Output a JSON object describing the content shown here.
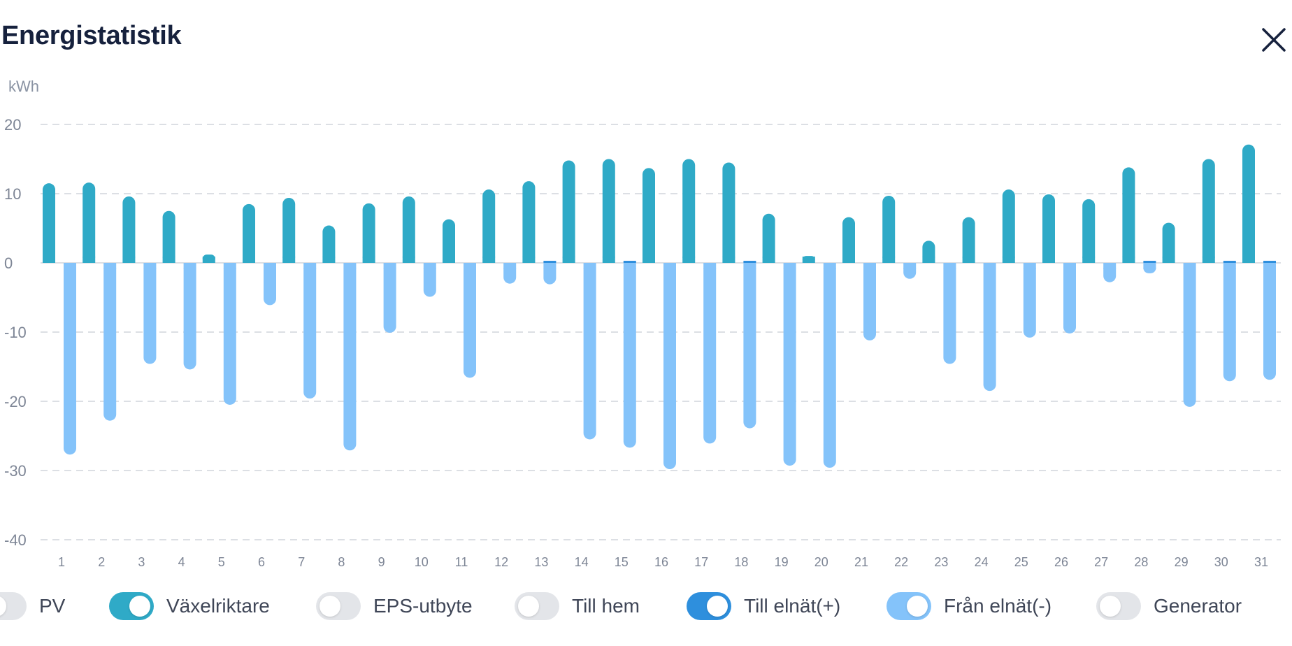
{
  "header": {
    "title": "Energistatistik"
  },
  "colors": {
    "inverter": "#2faac7",
    "to_grid": "#2e8fdd",
    "from_grid": "#84c3fa",
    "toggle_off": "#e3e5e9",
    "grid_line": "#dcdfe4"
  },
  "legend": [
    {
      "label": "PV",
      "on": false,
      "color": "#e3e5e9"
    },
    {
      "label": "Växelriktare",
      "on": true,
      "color": "#2faac7"
    },
    {
      "label": "EPS-utbyte",
      "on": false,
      "color": "#e3e5e9"
    },
    {
      "label": "Till hem",
      "on": false,
      "color": "#e3e5e9"
    },
    {
      "label": "Till elnät(+)",
      "on": true,
      "color": "#2e8fdd"
    },
    {
      "label": "Från elnät(-)",
      "on": true,
      "color": "#84c3fa"
    },
    {
      "label": "Generator",
      "on": false,
      "color": "#e3e5e9"
    }
  ],
  "chart_data": {
    "type": "bar",
    "ylabel": "kWh",
    "ylim": [
      -40,
      20
    ],
    "yticks": [
      20,
      10,
      0,
      -10,
      -20,
      -30,
      -40
    ],
    "grid": true,
    "categories": [
      "1",
      "2",
      "3",
      "4",
      "5",
      "6",
      "7",
      "8",
      "9",
      "10",
      "11",
      "12",
      "13",
      "14",
      "15",
      "16",
      "17",
      "18",
      "19",
      "20",
      "21",
      "22",
      "23",
      "24",
      "25",
      "26",
      "27",
      "28",
      "29",
      "30",
      "31"
    ],
    "series": [
      {
        "name": "Växelriktare",
        "color": "#2faac7",
        "values": [
          11.5,
          11.6,
          9.6,
          7.5,
          1.2,
          8.5,
          9.4,
          5.4,
          8.6,
          9.6,
          6.3,
          10.6,
          11.8,
          14.8,
          15.0,
          13.7,
          15.0,
          14.5,
          7.1,
          1.0,
          6.6,
          9.7,
          3.2,
          6.6,
          10.6,
          9.9,
          9.2,
          13.8,
          5.8,
          15.0,
          17.1
        ]
      },
      {
        "name": "Till elnät(+)",
        "color": "#2e8fdd",
        "values": [
          0,
          0,
          0,
          0,
          0,
          0,
          0,
          0,
          0,
          0,
          0,
          0,
          0.2,
          0,
          0.2,
          0,
          0,
          0.2,
          0,
          0,
          0,
          0,
          0,
          0,
          0,
          0,
          0,
          0.2,
          0,
          0.2,
          0.2
        ]
      },
      {
        "name": "Från elnät(-)",
        "color": "#84c3fa",
        "values": [
          -27.7,
          -22.8,
          -14.6,
          -15.4,
          -20.5,
          -6.1,
          -19.6,
          -27.1,
          -10.1,
          -4.9,
          -16.6,
          -3.0,
          -3.1,
          -25.5,
          -26.7,
          -29.8,
          -26.1,
          -23.9,
          -29.3,
          -29.6,
          -11.2,
          -2.3,
          -14.6,
          -18.5,
          -10.8,
          -10.2,
          -2.8,
          -1.5,
          -20.8,
          -17.1,
          -16.9
        ]
      }
    ]
  }
}
